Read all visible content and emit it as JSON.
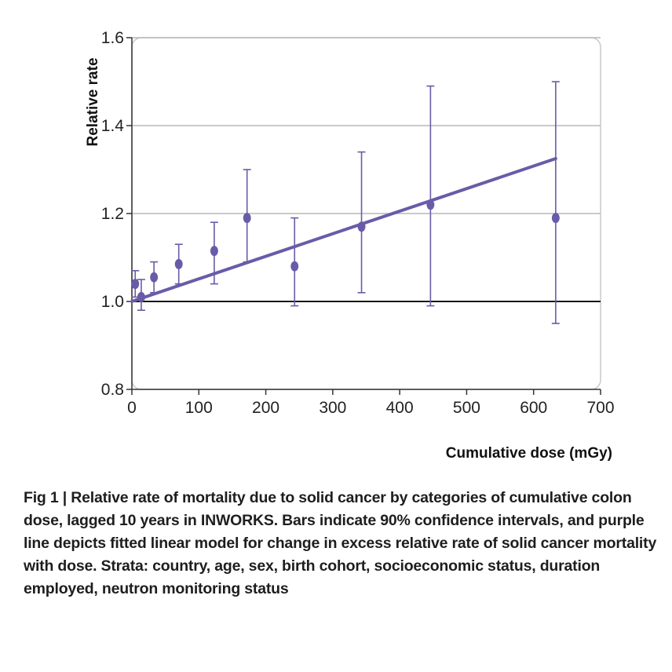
{
  "chart_data": {
    "type": "scatter",
    "ylabel": "Relative rate",
    "xlabel": "Cumulative dose (mGy)",
    "xlim": [
      0,
      700
    ],
    "ylim": [
      0.8,
      1.6
    ],
    "x_ticks": [
      "0",
      "100",
      "200",
      "300",
      "400",
      "500",
      "600",
      "700"
    ],
    "y_ticks": [
      "0.8",
      "1.0",
      "1.2",
      "1.4",
      "1.6"
    ],
    "grid": "horizontal",
    "reference_line": 1.0,
    "points": [
      {
        "x": 5,
        "y": 1.04,
        "lower": 1.01,
        "upper": 1.07
      },
      {
        "x": 14,
        "y": 1.01,
        "lower": 0.98,
        "upper": 1.05
      },
      {
        "x": 33,
        "y": 1.055,
        "lower": 1.02,
        "upper": 1.09
      },
      {
        "x": 70,
        "y": 1.085,
        "lower": 1.04,
        "upper": 1.13
      },
      {
        "x": 123,
        "y": 1.115,
        "lower": 1.04,
        "upper": 1.18
      },
      {
        "x": 172,
        "y": 1.19,
        "lower": 1.09,
        "upper": 1.3
      },
      {
        "x": 243,
        "y": 1.08,
        "lower": 0.99,
        "upper": 1.19
      },
      {
        "x": 343,
        "y": 1.17,
        "lower": 1.02,
        "upper": 1.34
      },
      {
        "x": 446,
        "y": 1.22,
        "lower": 0.99,
        "upper": 1.49
      },
      {
        "x": 633,
        "y": 1.19,
        "lower": 0.95,
        "upper": 1.5
      }
    ],
    "fit_line": {
      "x": [
        0,
        633
      ],
      "y": [
        1.0,
        1.325
      ]
    },
    "colors": {
      "series": "#6a5ba8",
      "reference": "#111111",
      "grid": "#b8b8b8",
      "frame": "#c8c8c8"
    }
  },
  "caption": "Fig 1 | Relative rate of mortality due to solid cancer by categories of cumulative colon dose, lagged 10 years in INWORKS. Bars indicate 90% confidence intervals, and purple line depicts fitted linear model for change in excess relative rate of solid cancer mortality with dose. Strata: country, age, sex, birth cohort, socioeconomic status, duration employed, neutron monitoring status"
}
